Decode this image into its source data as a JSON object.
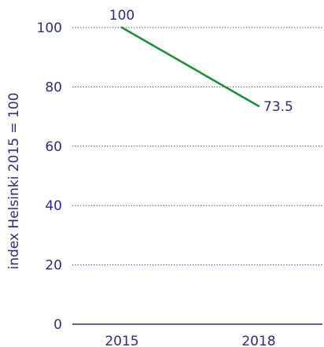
{
  "chart_data": {
    "type": "line",
    "title": "",
    "xlabel": "",
    "ylabel": "index Helsinki 2015 = 100",
    "categories": [
      "2015",
      "2018"
    ],
    "series": [
      {
        "color": "#1f8f3a",
        "values": [
          100,
          73.5
        ],
        "data_labels": [
          "100",
          "73.5"
        ]
      }
    ],
    "ylim": [
      0,
      100
    ],
    "yticks": [
      0,
      20,
      40,
      60,
      80,
      100
    ],
    "ytick_labels": [
      "0",
      "20",
      "40",
      "60",
      "80",
      "100"
    ],
    "grid": true,
    "legend": "none",
    "colors": {
      "text": "#2b2f7a",
      "axis": "#2b2f7a"
    }
  }
}
